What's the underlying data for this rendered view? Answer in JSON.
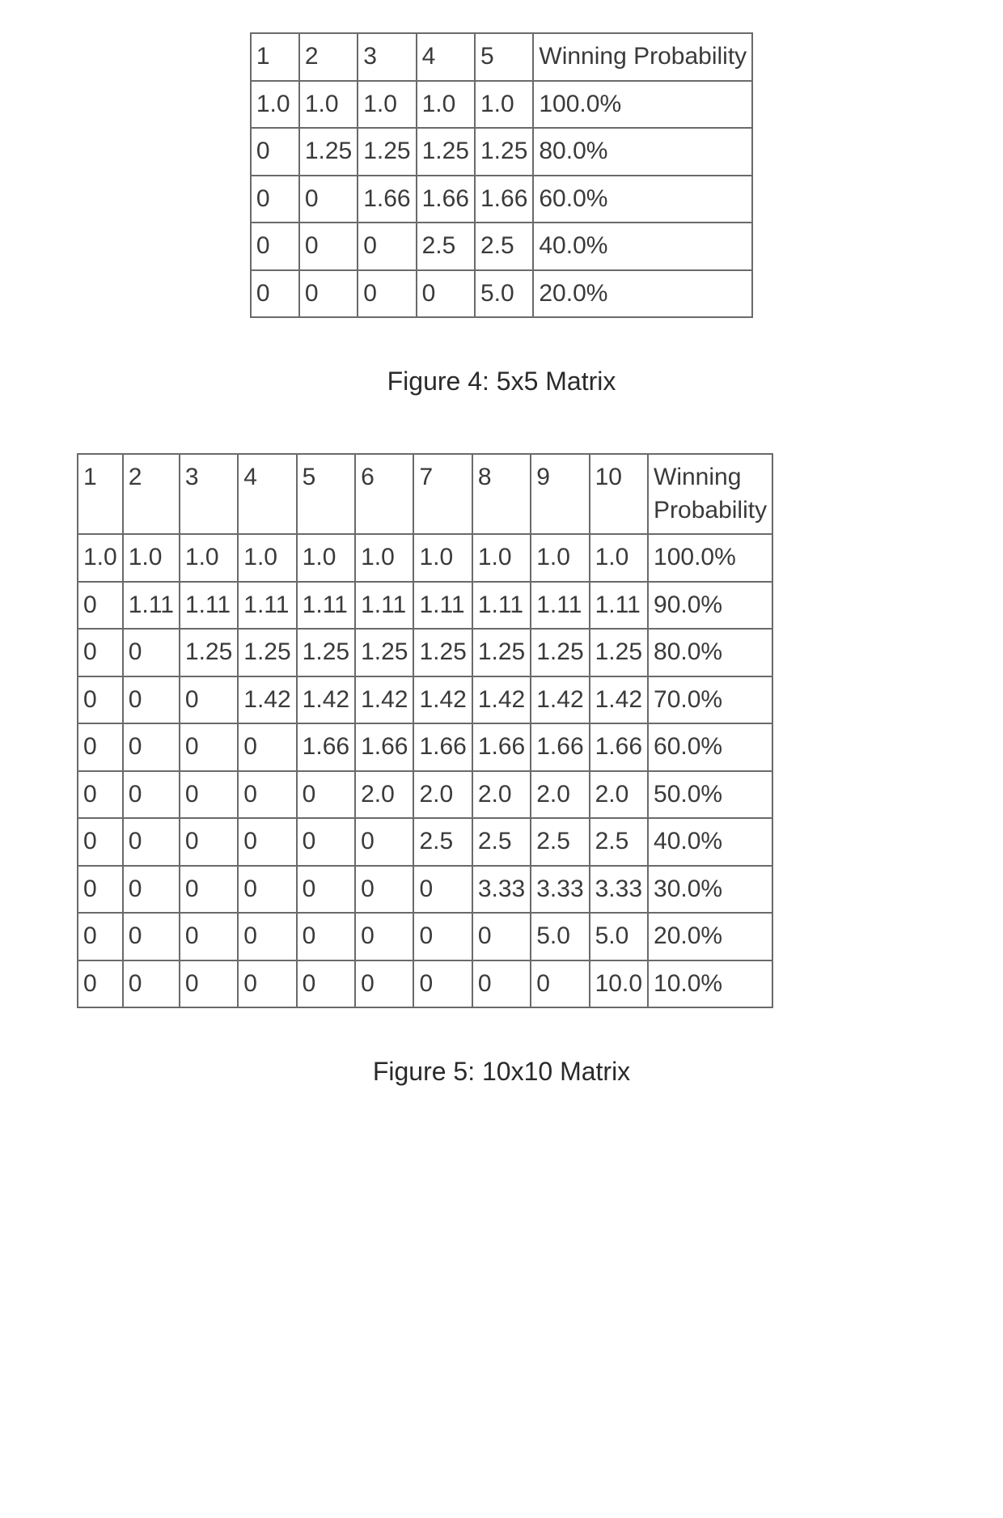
{
  "figure4": {
    "caption": "Figure 4: 5x5 Matrix",
    "last_header": "Winning Probability",
    "columns": [
      "1",
      "2",
      "3",
      "4",
      "5",
      "Winning Probability"
    ],
    "rows": [
      [
        "1.0",
        "1.0",
        "1.0",
        "1.0",
        "1.0",
        "100.0%"
      ],
      [
        "0",
        "1.25",
        "1.25",
        "1.25",
        "1.25",
        "80.0%"
      ],
      [
        "0",
        "0",
        "1.66",
        "1.66",
        "1.66",
        "60.0%"
      ],
      [
        "0",
        "0",
        "0",
        "2.5",
        "2.5",
        "40.0%"
      ],
      [
        "0",
        "0",
        "0",
        "0",
        "5.0",
        "20.0%"
      ]
    ],
    "border_color": "#6a6a6a",
    "text_color": "#3a3a3a",
    "background_color": "#ffffff",
    "font_size_pt": 22
  },
  "figure5": {
    "caption": "Figure 5: 10x10 Matrix",
    "last_header_line1": "Winning",
    "last_header_line2": "Probability",
    "columns": [
      "1",
      "2",
      "3",
      "4",
      "5",
      "6",
      "7",
      "8",
      "9",
      "10",
      "Winning Probability"
    ],
    "rows": [
      [
        "1.0",
        "1.0",
        "1.0",
        "1.0",
        "1.0",
        "1.0",
        "1.0",
        "1.0",
        "1.0",
        "1.0",
        "100.0%"
      ],
      [
        "0",
        "1.11",
        "1.11",
        "1.11",
        "1.11",
        "1.11",
        "1.11",
        "1.11",
        "1.11",
        "1.11",
        "90.0%"
      ],
      [
        "0",
        "0",
        "1.25",
        "1.25",
        "1.25",
        "1.25",
        "1.25",
        "1.25",
        "1.25",
        "1.25",
        "80.0%"
      ],
      [
        "0",
        "0",
        "0",
        "1.42",
        "1.42",
        "1.42",
        "1.42",
        "1.42",
        "1.42",
        "1.42",
        "70.0%"
      ],
      [
        "0",
        "0",
        "0",
        "0",
        "1.66",
        "1.66",
        "1.66",
        "1.66",
        "1.66",
        "1.66",
        "60.0%"
      ],
      [
        "0",
        "0",
        "0",
        "0",
        "0",
        "2.0",
        "2.0",
        "2.0",
        "2.0",
        "2.0",
        "50.0%"
      ],
      [
        "0",
        "0",
        "0",
        "0",
        "0",
        "0",
        "2.5",
        "2.5",
        "2.5",
        "2.5",
        "40.0%"
      ],
      [
        "0",
        "0",
        "0",
        "0",
        "0",
        "0",
        "0",
        "3.33",
        "3.33",
        "3.33",
        "30.0%"
      ],
      [
        "0",
        "0",
        "0",
        "0",
        "0",
        "0",
        "0",
        "0",
        "5.0",
        "5.0",
        "20.0%"
      ],
      [
        "0",
        "0",
        "0",
        "0",
        "0",
        "0",
        "0",
        "0",
        "0",
        "10.0",
        "10.0%"
      ]
    ],
    "border_color": "#6a6a6a",
    "text_color": "#3a3a3a",
    "background_color": "#ffffff",
    "font_size_pt": 22
  }
}
